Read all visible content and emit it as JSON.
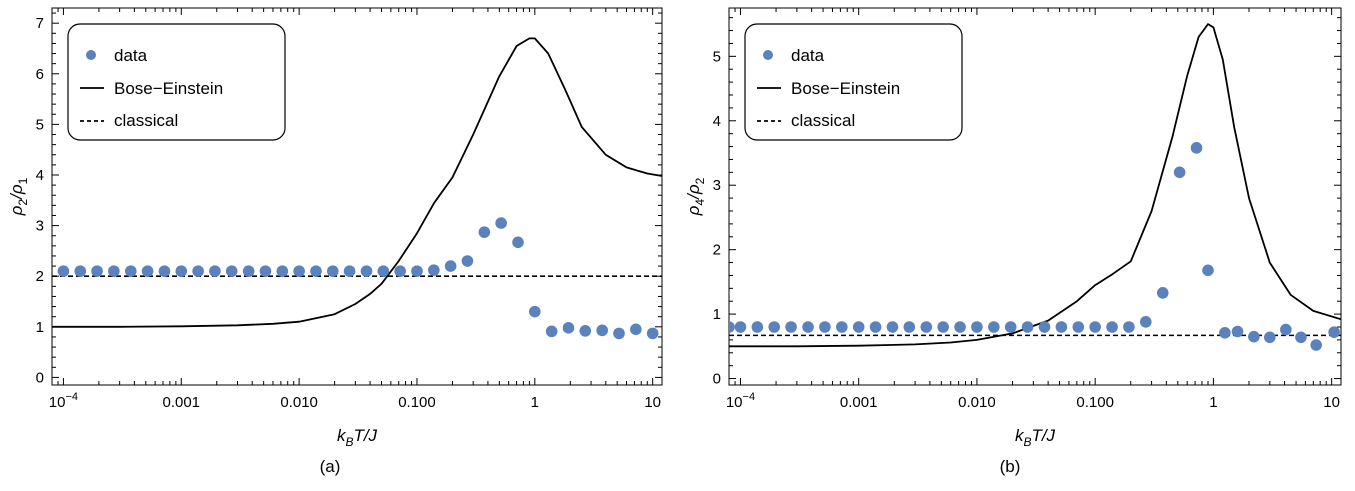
{
  "colors": {
    "data": "#5b82bd",
    "line": "#000000",
    "frame": "#000000",
    "background": "#ffffff"
  },
  "legend": {
    "data": "data",
    "bose": "Bose−Einstein",
    "classical": "classical"
  },
  "panels": [
    {
      "caption": "(a)",
      "ylabel_num": "ρ",
      "ylabel_num_sub": "2",
      "ylabel_den": "ρ",
      "ylabel_den_sub": "1",
      "xlabel_k": "k",
      "xlabel_sub": "B",
      "xlabel_rest": "T/J"
    },
    {
      "caption": "(b)",
      "ylabel_num": "ρ",
      "ylabel_num_sub": "4",
      "ylabel_den": "ρ",
      "ylabel_den_sub": "2",
      "xlabel_k": "k",
      "xlabel_sub": "B",
      "xlabel_rest": "T/J"
    }
  ],
  "chart_data": [
    {
      "type": "scatter",
      "xscale": "log",
      "xlim": [
        8e-05,
        12
      ],
      "ylim": [
        -0.15,
        7.3
      ],
      "xticks": [
        {
          "v": 0.0001,
          "base": "10",
          "exp": "−4"
        },
        {
          "v": 0.001,
          "label": "0.001"
        },
        {
          "v": 0.01,
          "label": "0.010"
        },
        {
          "v": 0.1,
          "label": "0.100"
        },
        {
          "v": 1,
          "label": "1"
        },
        {
          "v": 10,
          "label": "10"
        }
      ],
      "yticks": [
        0,
        1,
        2,
        3,
        4,
        5,
        6,
        7
      ],
      "legend_position": "top-left",
      "grid": false,
      "series": [
        {
          "name": "data",
          "kind": "points",
          "x": [
            0.0001,
            0.000139,
            0.000193,
            0.000268,
            0.000373,
            0.000518,
            0.00072,
            0.001,
            0.00139,
            0.00193,
            0.00268,
            0.00373,
            0.00518,
            0.0072,
            0.01,
            0.0139,
            0.0193,
            0.0268,
            0.0373,
            0.0518,
            0.072,
            0.1,
            0.139,
            0.193,
            0.268,
            0.373,
            0.518,
            0.72,
            1,
            1.39,
            1.93,
            2.68,
            3.73,
            5.18,
            7.2,
            10
          ],
          "y": [
            2.1,
            2.1,
            2.1,
            2.1,
            2.1,
            2.1,
            2.1,
            2.1,
            2.1,
            2.1,
            2.1,
            2.1,
            2.1,
            2.1,
            2.1,
            2.1,
            2.1,
            2.1,
            2.1,
            2.1,
            2.1,
            2.1,
            2.12,
            2.2,
            2.3,
            2.87,
            3.05,
            2.67,
            1.3,
            0.91,
            0.98,
            0.92,
            0.93,
            0.87,
            0.95,
            0.87
          ]
        },
        {
          "name": "Bose−Einstein",
          "kind": "line",
          "x": [
            8e-05,
            0.0001,
            0.0003,
            0.001,
            0.003,
            0.006,
            0.01,
            0.02,
            0.03,
            0.04,
            0.05,
            0.07,
            0.1,
            0.14,
            0.2,
            0.3,
            0.5,
            0.7,
            0.9,
            1.0,
            1.3,
            1.8,
            2.5,
            4,
            6,
            9,
            12
          ],
          "y": [
            1.0,
            1.0,
            1.0,
            1.01,
            1.03,
            1.06,
            1.1,
            1.25,
            1.45,
            1.65,
            1.85,
            2.3,
            2.85,
            3.45,
            3.95,
            4.8,
            5.95,
            6.55,
            6.7,
            6.7,
            6.4,
            5.7,
            4.95,
            4.4,
            4.15,
            4.03,
            3.98
          ]
        },
        {
          "name": "classical",
          "kind": "dashed",
          "x": [
            8e-05,
            12
          ],
          "y": [
            2.0,
            2.0
          ]
        }
      ]
    },
    {
      "type": "scatter",
      "xscale": "log",
      "xlim": [
        8e-05,
        12
      ],
      "ylim": [
        -0.1,
        5.75
      ],
      "xticks": [
        {
          "v": 0.0001,
          "base": "10",
          "exp": "−4"
        },
        {
          "v": 0.001,
          "label": "0.001"
        },
        {
          "v": 0.01,
          "label": "0.010"
        },
        {
          "v": 0.1,
          "label": "0.100"
        },
        {
          "v": 1,
          "label": "1"
        },
        {
          "v": 10,
          "label": "10"
        }
      ],
      "yticks": [
        0,
        1,
        2,
        3,
        4,
        5
      ],
      "legend_position": "top-left",
      "grid": false,
      "series": [
        {
          "name": "data",
          "kind": "points",
          "x": [
            8e-05,
            0.0001,
            0.000139,
            0.000193,
            0.000268,
            0.000373,
            0.000518,
            0.00072,
            0.001,
            0.00139,
            0.00193,
            0.00268,
            0.00373,
            0.00518,
            0.0072,
            0.01,
            0.0139,
            0.0193,
            0.0268,
            0.0373,
            0.0518,
            0.072,
            0.1,
            0.139,
            0.193,
            0.268,
            0.373,
            0.518,
            0.72,
            0.9,
            1.25,
            1.6,
            2.2,
            3.0,
            4.1,
            5.5,
            7.4,
            10.5
          ],
          "y": [
            0.8,
            0.8,
            0.8,
            0.8,
            0.8,
            0.8,
            0.8,
            0.8,
            0.8,
            0.8,
            0.8,
            0.8,
            0.8,
            0.8,
            0.8,
            0.8,
            0.8,
            0.8,
            0.8,
            0.8,
            0.8,
            0.8,
            0.8,
            0.8,
            0.8,
            0.88,
            1.33,
            3.2,
            3.58,
            1.68,
            0.71,
            0.73,
            0.65,
            0.64,
            0.76,
            0.64,
            0.52,
            0.72
          ]
        },
        {
          "name": "Bose−Einstein",
          "kind": "line",
          "x": [
            8e-05,
            0.0003,
            0.001,
            0.003,
            0.006,
            0.01,
            0.02,
            0.04,
            0.07,
            0.1,
            0.14,
            0.2,
            0.3,
            0.45,
            0.6,
            0.75,
            0.9,
            1.0,
            1.2,
            1.5,
            2.0,
            3.0,
            4.5,
            7,
            12
          ],
          "y": [
            0.5,
            0.5,
            0.51,
            0.53,
            0.56,
            0.6,
            0.7,
            0.9,
            1.2,
            1.45,
            1.62,
            1.82,
            2.6,
            3.75,
            4.7,
            5.3,
            5.5,
            5.45,
            4.95,
            3.9,
            2.8,
            1.8,
            1.3,
            1.05,
            0.92
          ]
        },
        {
          "name": "classical",
          "kind": "dashed",
          "x": [
            8e-05,
            12
          ],
          "y": [
            0.67,
            0.67
          ]
        }
      ]
    }
  ]
}
